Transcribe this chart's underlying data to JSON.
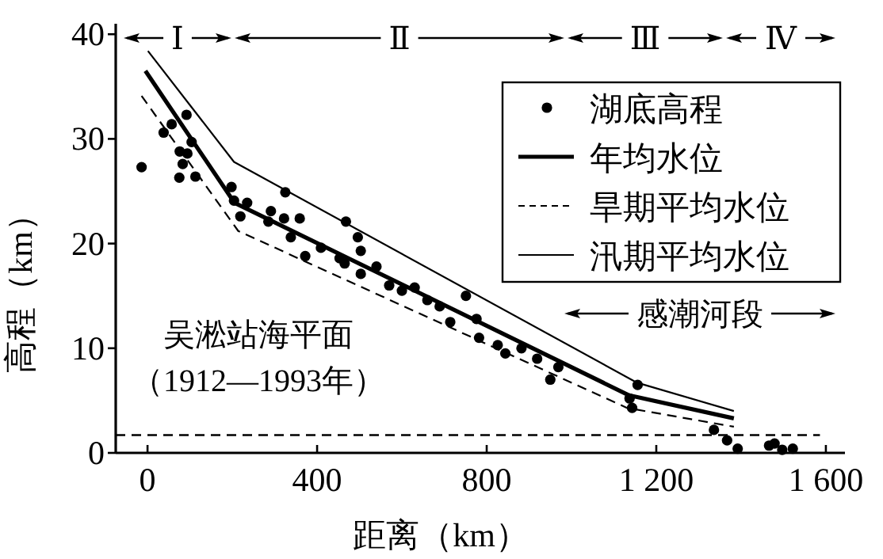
{
  "chart_data": {
    "type": "line",
    "xlabel": "距离（km）",
    "ylabel": "高程（km）",
    "xlim": [
      -75,
      1645
    ],
    "ylim": [
      0,
      41
    ],
    "xticks": [
      0,
      400,
      800,
      {
        "value": 1200,
        "label": "1 200"
      },
      {
        "value": 1600,
        "label": "1 600"
      }
    ],
    "yticks": [
      0,
      10,
      20,
      30,
      40
    ],
    "grid": false,
    "legend": "top right",
    "series": [
      {
        "name": "湖底高程",
        "type": "scatter",
        "marker": "circle",
        "color": "#000000",
        "x": [
          -14,
          38,
          57,
          92,
          76,
          94,
          104,
          83,
          75,
          113,
          198,
          204,
          219,
          235,
          291,
          285,
          325,
          322,
          359,
          338,
          372,
          409,
          453,
          465,
          468,
          496,
          503,
          503,
          540,
          570,
          600,
          630,
          660,
          689,
          714,
          751,
          776,
          782,
          826,
          844,
          882,
          919,
          950,
          969,
          1137,
          1143,
          1156,
          1336,
          1367,
          1392,
          1466,
          1479,
          1497,
          1522
        ],
        "values": [
          27.3,
          30.6,
          31.4,
          32.3,
          28.8,
          28.6,
          29.7,
          27.6,
          26.3,
          26.4,
          25.4,
          24.1,
          22.6,
          23.9,
          23.1,
          22.1,
          24.9,
          22.4,
          22.4,
          20.6,
          18.8,
          19.6,
          18.6,
          18.1,
          22.1,
          20.6,
          19.3,
          17.1,
          17.8,
          16.0,
          15.5,
          15.8,
          14.6,
          14.0,
          12.5,
          15.0,
          12.8,
          11.0,
          10.3,
          9.5,
          10.0,
          9.0,
          7.0,
          8.2,
          5.2,
          4.3,
          6.5,
          2.2,
          1.2,
          0.4,
          0.7,
          0.9,
          0.3,
          0.4
        ]
      },
      {
        "name": "年均水位",
        "type": "line",
        "line_style": "solid",
        "color": "#000000",
        "x": [
          -5,
          205,
          1136,
          1383
        ],
        "values": [
          36.5,
          23.9,
          5.5,
          3.3
        ]
      },
      {
        "name": "旱期平均水位",
        "type": "line",
        "line_style": "dashed",
        "color": "#000000",
        "x": [
          -14,
          214,
          1131,
          1383
        ],
        "values": [
          34.1,
          21.2,
          4.3,
          2.5
        ]
      },
      {
        "name": "汛期平均水位",
        "type": "line",
        "line_style": "solid",
        "color": "#000000",
        "x": [
          1,
          204,
          1155,
          1383
        ],
        "values": [
          38.4,
          27.8,
          6.7,
          4.0
        ]
      }
    ],
    "ref_lines": [
      {
        "axis": "y",
        "value": 1.7,
        "label": "吴淞站海平面（1912—1993年）",
        "line_style": "dashed",
        "color": "#000000"
      }
    ],
    "annotations": [
      "Ⅰ",
      "Ⅱ",
      "Ⅲ",
      "Ⅳ",
      "感潮河段"
    ]
  }
}
